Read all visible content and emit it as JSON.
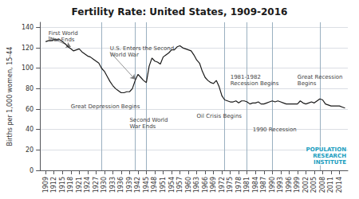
{
  "chart_data": {
    "type": "line",
    "title": "Fertility Rate: United States, 1909-2016",
    "ylabel": "Births per 1,000 women, 15-44",
    "color": "#1a1a1a",
    "grid": true,
    "x": [
      1909,
      1910,
      1911,
      1912,
      1913,
      1914,
      1915,
      1916,
      1917,
      1918,
      1919,
      1920,
      1921,
      1922,
      1923,
      1924,
      1925,
      1926,
      1927,
      1928,
      1929,
      1930,
      1931,
      1932,
      1933,
      1934,
      1935,
      1936,
      1937,
      1938,
      1939,
      1940,
      1941,
      1942,
      1943,
      1944,
      1945,
      1946,
      1947,
      1948,
      1949,
      1950,
      1951,
      1952,
      1953,
      1954,
      1955,
      1956,
      1957,
      1958,
      1959,
      1960,
      1961,
      1962,
      1963,
      1964,
      1965,
      1966,
      1967,
      1968,
      1969,
      1970,
      1971,
      1972,
      1973,
      1974,
      1975,
      1976,
      1977,
      1978,
      1979,
      1980,
      1981,
      1982,
      1983,
      1984,
      1985,
      1986,
      1987,
      1988,
      1989,
      1990,
      1991,
      1992,
      1993,
      1994,
      1995,
      1996,
      1997,
      1998,
      1999,
      2000,
      2001,
      2002,
      2003,
      2004,
      2005,
      2006,
      2007,
      2008,
      2009,
      2010,
      2011,
      2012,
      2013,
      2014,
      2015,
      2016
    ],
    "values": [
      126,
      127,
      127,
      128,
      128,
      128,
      126,
      124,
      121,
      119,
      117,
      118,
      119,
      116,
      114,
      112,
      111,
      109,
      107,
      105,
      100,
      97,
      92,
      87,
      83,
      80,
      78,
      76,
      76,
      77,
      77,
      80,
      88,
      94,
      91,
      88,
      86,
      102,
      110,
      107,
      106,
      104,
      111,
      113,
      115,
      118,
      118,
      121,
      122,
      120,
      119,
      118,
      117,
      113,
      108,
      105,
      97,
      91,
      88,
      86,
      85,
      88,
      82,
      73,
      69,
      68,
      67,
      67,
      68,
      66,
      68,
      68,
      67,
      65,
      66,
      66,
      67,
      65,
      65,
      66,
      67,
      68,
      67,
      68,
      67,
      66,
      65,
      65,
      65,
      65,
      65,
      68,
      66,
      65,
      66,
      67,
      66,
      68,
      70,
      69,
      65,
      64,
      63,
      63,
      63,
      63,
      62,
      61
    ],
    "xlim": [
      1907,
      2017
    ],
    "xticks": [
      1909,
      1912,
      1915,
      1918,
      1921,
      1924,
      1927,
      1930,
      1933,
      1936,
      1939,
      1942,
      1945,
      1948,
      1951,
      1954,
      1957,
      1960,
      1963,
      1966,
      1969,
      1972,
      1975,
      1978,
      1981,
      1984,
      1987,
      1990,
      1993,
      1996,
      1999,
      2002,
      2005,
      2008,
      2011,
      2014
    ],
    "ylim": [
      0,
      145
    ],
    "yticks": [
      0,
      20,
      40,
      60,
      80,
      100,
      120,
      140
    ],
    "vlines": {
      "x": [
        1929,
        1941,
        1945,
        1973,
        1981,
        1990,
        2007
      ],
      "color": "#9ab0c0"
    },
    "annotations": [
      {
        "text": "First World\nWar Ends",
        "x": 1910,
        "y": 131,
        "arrow": [
          1918,
          121
        ]
      },
      {
        "text": "Great Depression Begins",
        "x": 1918,
        "y": 62
      },
      {
        "text": "U.S. Enters the Second\nWorld War",
        "x": 1932,
        "y": 116,
        "arrow": [
          1941,
          89
        ]
      },
      {
        "text": "Second World\nWar Ends",
        "x": 1939,
        "y": 46
      },
      {
        "text": "Oil Crisis Begins",
        "x": 1963,
        "y": 53
      },
      {
        "text": "1981-1982\nRecession Begins",
        "x": 1975,
        "y": 88
      },
      {
        "text": "1990 Recession",
        "x": 1983,
        "y": 40
      },
      {
        "text": "Great Recession\nBegins",
        "x": 1999,
        "y": 88
      }
    ],
    "credit": {
      "text": "POPULATION\nRESEARCH\nINSTITUTE",
      "color": "#1a9dbe"
    }
  }
}
